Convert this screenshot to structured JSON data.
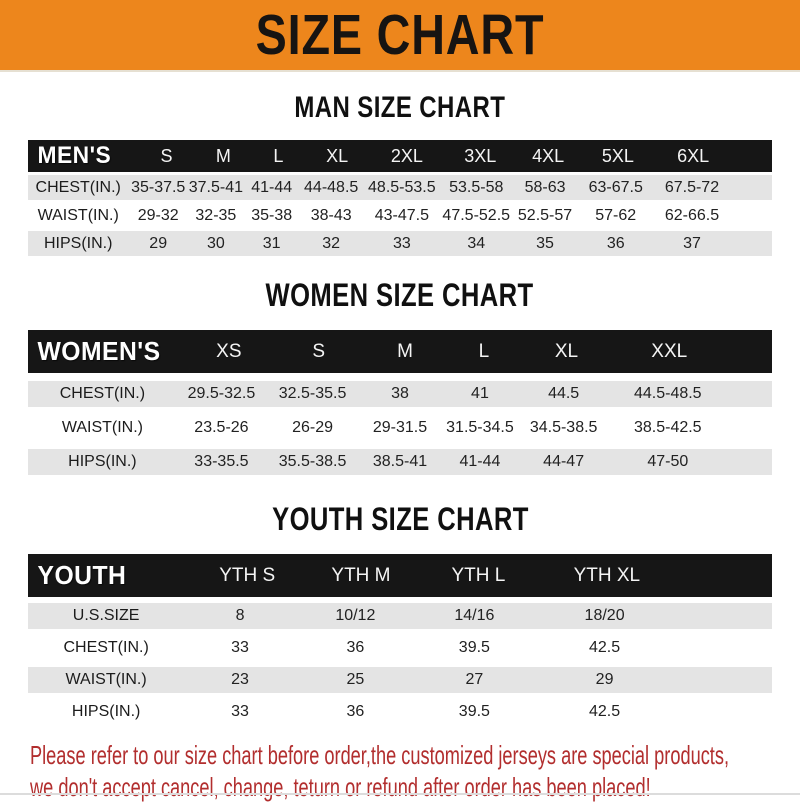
{
  "page": {
    "banner_title": "SIZE CHART",
    "accent_color": "#ED861C",
    "header_bar_color": "#161616",
    "stripe_color": "#E4E4E4",
    "footer_color": "#B22E2E",
    "footer_line1": "Please refer to our size chart before order,the customized jerseys are special products,",
    "footer_line2": "we don't accept cancel, change, teturn or refund after order has been placed!"
  },
  "sections": [
    {
      "title": "MAN SIZE CHART",
      "header_label": "MEN'S",
      "columns": [
        "S",
        "M",
        "L",
        "XL",
        "2XL",
        "3XL",
        "4XL",
        "5XL",
        "6XL"
      ],
      "rows": [
        {
          "label": "CHEST(IN.)",
          "values": [
            "35-37.5",
            "37.5-41",
            "41-44",
            "44-48.5",
            "48.5-53.5",
            "53.5-58",
            "58-63",
            "63-67.5",
            "67.5-72"
          ]
        },
        {
          "label": "WAIST(IN.)",
          "values": [
            "29-32",
            "32-35",
            "35-38",
            "38-43",
            "43-47.5",
            "47.5-52.5",
            "52.5-57",
            "57-62",
            "62-66.5"
          ]
        },
        {
          "label": "HIPS(IN.)",
          "values": [
            "29",
            "30",
            "31",
            "32",
            "33",
            "34",
            "35",
            "36",
            "37"
          ]
        }
      ]
    },
    {
      "title": "WOMEN SIZE CHART",
      "header_label": "WOMEN'S",
      "columns": [
        "XS",
        "S",
        "M",
        "L",
        "XL",
        "XXL"
      ],
      "rows": [
        {
          "label": "CHEST(IN.)",
          "values": [
            "29.5-32.5",
            "32.5-35.5",
            "38",
            "41",
            "44.5",
            "44.5-48.5"
          ]
        },
        {
          "label": "WAIST(IN.)",
          "values": [
            "23.5-26",
            "26-29",
            "29-31.5",
            "31.5-34.5",
            "34.5-38.5",
            "38.5-42.5"
          ]
        },
        {
          "label": "HIPS(IN.)",
          "values": [
            "33-35.5",
            "35.5-38.5",
            "38.5-41",
            "41-44",
            "44-47",
            "47-50"
          ]
        }
      ]
    },
    {
      "title": "YOUTH SIZE CHART",
      "header_label": "YOUTH",
      "columns": [
        "YTH S",
        "YTH M",
        "YTH L",
        "YTH XL"
      ],
      "rows": [
        {
          "label": "U.S.SIZE",
          "values": [
            "8",
            "10/12",
            "14/16",
            "18/20"
          ]
        },
        {
          "label": "CHEST(IN.)",
          "values": [
            "33",
            "36",
            "39.5",
            "42.5"
          ]
        },
        {
          "label": "WAIST(IN.)",
          "values": [
            "23",
            "25",
            "27",
            "29"
          ]
        },
        {
          "label": "HIPS(IN.)",
          "values": [
            "33",
            "36",
            "39.5",
            "42.5"
          ]
        }
      ]
    }
  ]
}
